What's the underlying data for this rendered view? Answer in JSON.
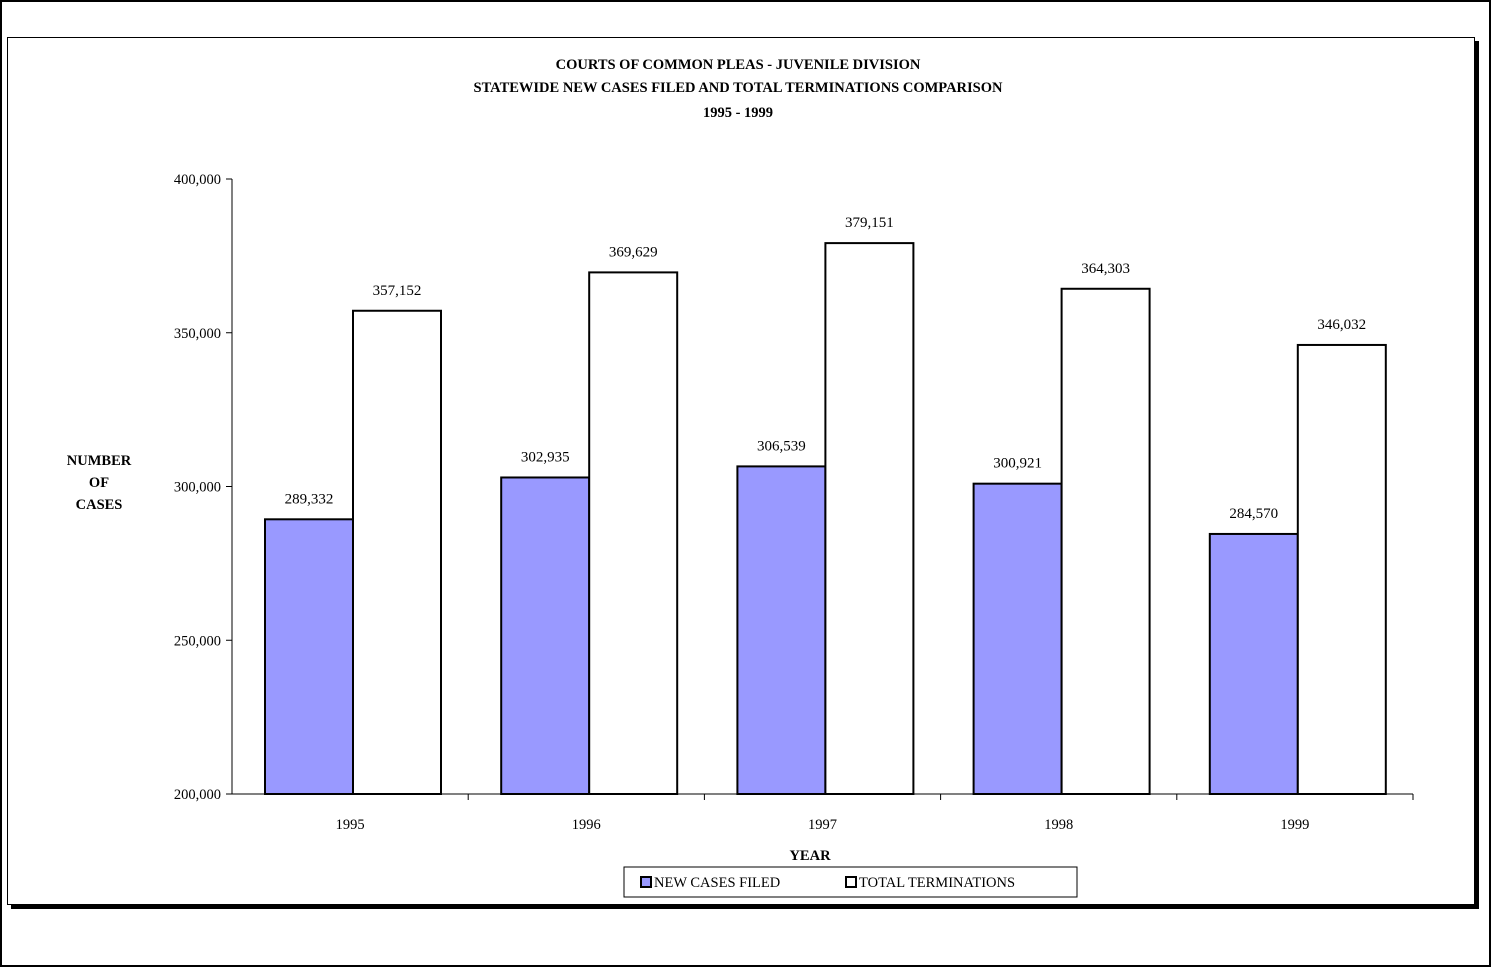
{
  "chart_data": {
    "type": "bar",
    "title": [
      "COURTS OF COMMON PLEAS - JUVENILE DIVISION",
      "STATEWIDE NEW CASES FILED AND TOTAL TERMINATIONS COMPARISON",
      "1995 - 1999"
    ],
    "xlabel": "YEAR",
    "ylabel": [
      "NUMBER",
      "OF",
      "CASES"
    ],
    "categories": [
      "1995",
      "1996",
      "1997",
      "1998",
      "1999"
    ],
    "ylim": [
      200000,
      400000
    ],
    "yticks": [
      200000,
      250000,
      300000,
      350000,
      400000
    ],
    "ytick_labels": [
      "200,000",
      "250,000",
      "300,000",
      "350,000",
      "400,000"
    ],
    "grid": false,
    "legend_position": "bottom",
    "series": [
      {
        "name": "NEW CASES FILED",
        "color": "#9999ff",
        "values": [
          289332,
          302935,
          306539,
          300921,
          284570
        ],
        "labels": [
          "289,332",
          "302,935",
          "306,539",
          "300,921",
          "284,570"
        ]
      },
      {
        "name": "TOTAL TERMINATIONS",
        "color": "#ffffff",
        "values": [
          357152,
          369629,
          379151,
          364303,
          346032
        ],
        "labels": [
          "357,152",
          "369,629",
          "379,151",
          "364,303",
          "346,032"
        ]
      }
    ]
  }
}
